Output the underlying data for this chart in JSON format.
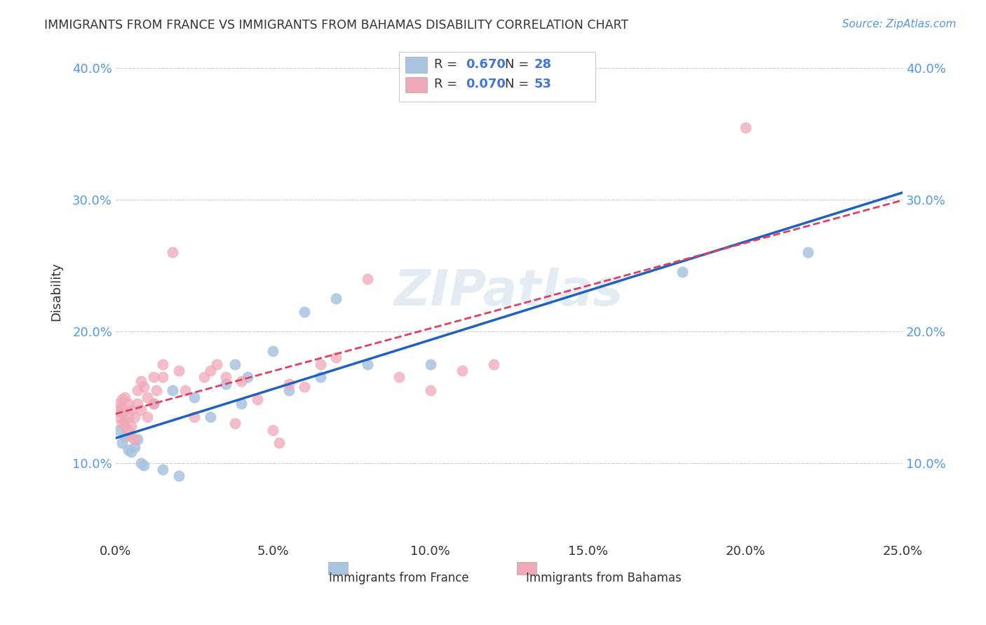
{
  "title": "IMMIGRANTS FROM FRANCE VS IMMIGRANTS FROM BAHAMAS DISABILITY CORRELATION CHART",
  "source": "Source: ZipAtlas.com",
  "xlabel": "",
  "ylabel": "Disability",
  "xlim": [
    0.0,
    0.25
  ],
  "ylim": [
    0.04,
    0.42
  ],
  "xticks": [
    0.0,
    0.05,
    0.1,
    0.15,
    0.2,
    0.25
  ],
  "yticks": [
    0.1,
    0.2,
    0.3,
    0.4
  ],
  "france_R": 0.67,
  "france_N": 28,
  "bahamas_R": 0.07,
  "bahamas_N": 53,
  "france_color": "#a8c4e0",
  "france_line_color": "#2060c0",
  "bahamas_color": "#f0a8b8",
  "bahamas_line_color": "#e04060",
  "france_x": [
    0.001,
    0.002,
    0.003,
    0.004,
    0.005,
    0.006,
    0.007,
    0.008,
    0.009,
    0.012,
    0.015,
    0.018,
    0.02,
    0.025,
    0.03,
    0.035,
    0.038,
    0.04,
    0.042,
    0.05,
    0.055,
    0.06,
    0.065,
    0.07,
    0.08,
    0.1,
    0.18,
    0.22
  ],
  "france_y": [
    0.125,
    0.115,
    0.12,
    0.11,
    0.108,
    0.112,
    0.118,
    0.1,
    0.098,
    0.145,
    0.095,
    0.155,
    0.09,
    0.15,
    0.135,
    0.16,
    0.175,
    0.145,
    0.165,
    0.185,
    0.155,
    0.215,
    0.165,
    0.225,
    0.175,
    0.175,
    0.245,
    0.26
  ],
  "bahamas_x": [
    0.001,
    0.001,
    0.001,
    0.002,
    0.002,
    0.002,
    0.002,
    0.003,
    0.003,
    0.003,
    0.004,
    0.004,
    0.004,
    0.005,
    0.005,
    0.005,
    0.006,
    0.006,
    0.007,
    0.007,
    0.008,
    0.008,
    0.009,
    0.01,
    0.01,
    0.012,
    0.012,
    0.013,
    0.015,
    0.015,
    0.018,
    0.02,
    0.022,
    0.025,
    0.028,
    0.03,
    0.032,
    0.035,
    0.038,
    0.04,
    0.045,
    0.05,
    0.052,
    0.055,
    0.06,
    0.065,
    0.07,
    0.08,
    0.09,
    0.1,
    0.11,
    0.12,
    0.2
  ],
  "bahamas_y": [
    0.135,
    0.14,
    0.145,
    0.13,
    0.138,
    0.142,
    0.148,
    0.128,
    0.132,
    0.15,
    0.125,
    0.135,
    0.145,
    0.12,
    0.128,
    0.14,
    0.118,
    0.135,
    0.145,
    0.155,
    0.14,
    0.162,
    0.158,
    0.135,
    0.15,
    0.145,
    0.165,
    0.155,
    0.165,
    0.175,
    0.26,
    0.17,
    0.155,
    0.135,
    0.165,
    0.17,
    0.175,
    0.165,
    0.13,
    0.162,
    0.148,
    0.125,
    0.115,
    0.16,
    0.158,
    0.175,
    0.18,
    0.24,
    0.165,
    0.155,
    0.17,
    0.175,
    0.355
  ],
  "watermark": "ZIPatlas",
  "background_color": "#ffffff",
  "grid_color": "#cccccc"
}
